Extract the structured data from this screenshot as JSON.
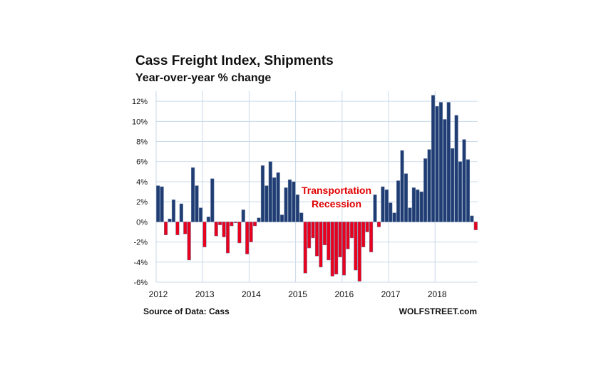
{
  "chart_data": {
    "type": "bar",
    "title": "Cass Freight Index, Shipments",
    "subtitle": "Year-over-year % change",
    "source": "Source of Data: Cass",
    "brand": "WOLFSTREET.com",
    "annotation": [
      "Transportation",
      "Recession"
    ],
    "ylim": [
      -6,
      13
    ],
    "yticks": [
      12,
      10,
      8,
      6,
      4,
      2,
      0,
      -2,
      -4,
      -6
    ],
    "ytick_labels": [
      "12%",
      "10%",
      "8%",
      "6%",
      "4%",
      "2%",
      "0%",
      "-2%",
      "-4%",
      "-6%"
    ],
    "xticks": [
      "2012",
      "2013",
      "2014",
      "2015",
      "2016",
      "2017",
      "2018"
    ],
    "grid": true,
    "colors": {
      "positive": "#1f3d73",
      "negative": "#e8001c",
      "grid": "#c9d9ea",
      "bar_edge": "#6a7fa6"
    },
    "start": "2012-01",
    "values": [
      3.6,
      3.5,
      -1.3,
      0.3,
      2.2,
      -1.3,
      1.8,
      -1.2,
      -3.8,
      5.4,
      3.6,
      1.4,
      -2.5,
      0.5,
      4.3,
      -1.4,
      -0.3,
      -1.5,
      -3.1,
      -0.4,
      -0.1,
      -2.1,
      1.2,
      -3.2,
      -2.0,
      -0.4,
      0.4,
      5.6,
      3.6,
      6.0,
      4.4,
      4.9,
      0.7,
      3.4,
      4.2,
      4.0,
      2.7,
      0.9,
      -5.1,
      -2.6,
      -1.6,
      -3.4,
      -4.5,
      -2.3,
      -3.8,
      -5.4,
      -5.2,
      -3.5,
      -5.3,
      -2.7,
      -1.6,
      -4.8,
      -5.9,
      -2.5,
      -1.0,
      -3.0,
      2.7,
      -0.5,
      3.5,
      3.2,
      1.9,
      0.9,
      4.1,
      7.1,
      4.8,
      1.4,
      3.4,
      3.2,
      3.0,
      6.3,
      7.2,
      12.6,
      11.5,
      11.9,
      10.2,
      11.9,
      7.3,
      10.6,
      6.0,
      8.2,
      6.2,
      0.6,
      -0.8
    ]
  }
}
